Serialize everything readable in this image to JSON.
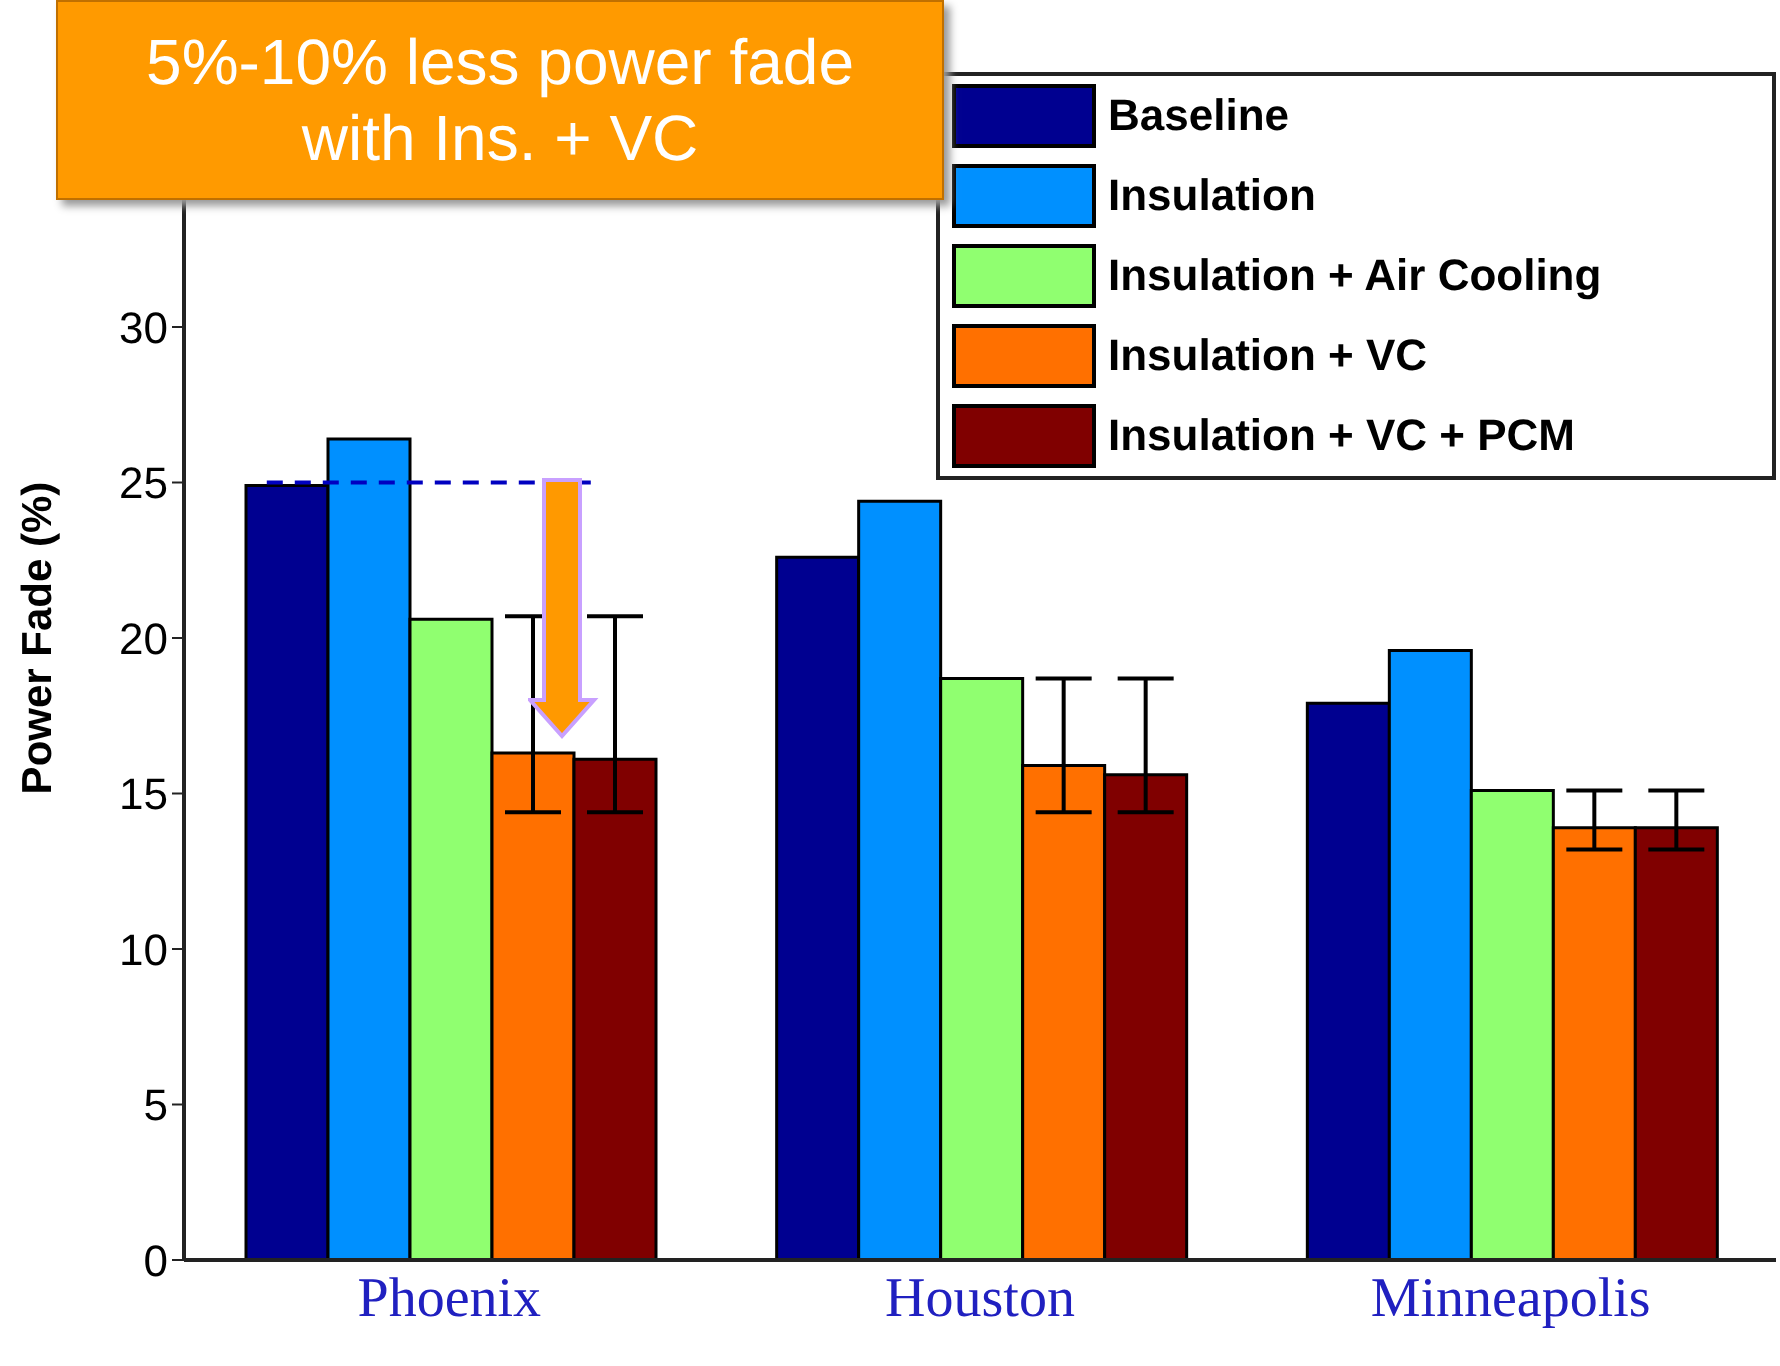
{
  "chart_data": {
    "type": "bar",
    "categories": [
      "Phoenix",
      "Houston",
      "Minneapolis"
    ],
    "ylabel": "Power Fade (%)",
    "ylim": [
      0,
      40
    ],
    "yticks": [
      0,
      5,
      10,
      15,
      20,
      25,
      30
    ],
    "legend": "top right",
    "grid": false,
    "series": [
      {
        "name": "Baseline",
        "color": "#000090",
        "values": [
          24.9,
          22.6,
          17.9
        ]
      },
      {
        "name": "Insulation",
        "color": "#0090ff",
        "values": [
          26.4,
          24.4,
          19.6
        ]
      },
      {
        "name": "Insulation + Air Cooling",
        "color": "#90ff70",
        "values": [
          20.6,
          18.7,
          15.1
        ]
      },
      {
        "name": "Insulation + VC",
        "color": "#ff7000",
        "values": [
          16.3,
          15.9,
          13.9
        ],
        "errors": [
          [
            14.4,
            20.7
          ],
          [
            14.4,
            18.7
          ],
          [
            13.2,
            15.1
          ]
        ]
      },
      {
        "name": "Insulation + VC + PCM",
        "color": "#800000",
        "values": [
          16.1,
          15.6,
          13.9
        ],
        "errors": [
          [
            14.4,
            20.7
          ],
          [
            14.4,
            18.7
          ],
          [
            13.2,
            15.1
          ]
        ]
      }
    ],
    "ref_lines": [
      {
        "axis": "y",
        "value": 25,
        "color": "#0000c0",
        "line_style": "dashed"
      }
    ],
    "annotations": [
      "5%-10% less power fade with Ins. + VC"
    ]
  }
}
